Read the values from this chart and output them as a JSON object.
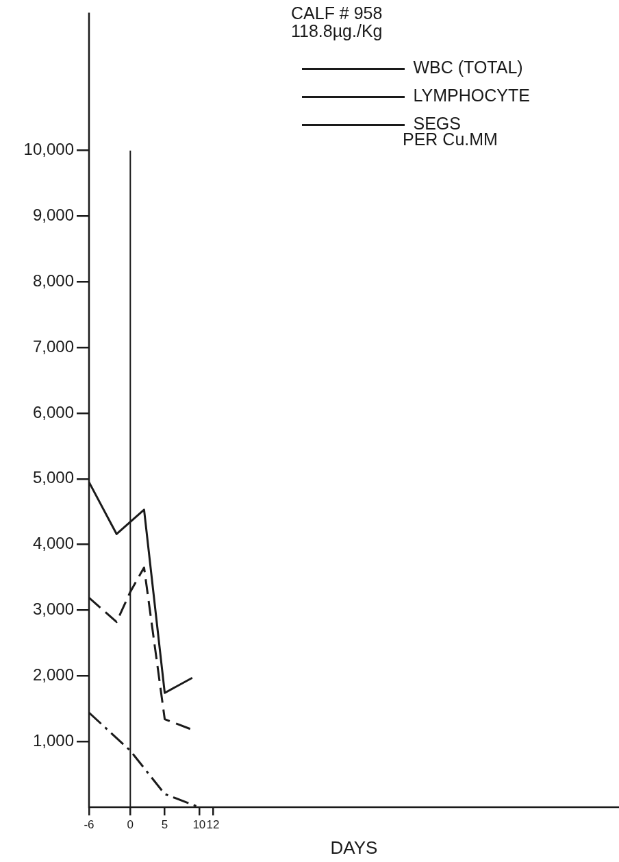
{
  "chart_data": {
    "type": "line",
    "title": "CALF # 958",
    "subtitle": "118.8µg./Kg",
    "xlabel": "DAYS",
    "ylabel": "PER Cu.MM",
    "xlim": [
      -6,
      71
    ],
    "xticks": [
      -6,
      0,
      5,
      10,
      12
    ],
    "ylim": [
      0,
      12100
    ],
    "yticks": [
      {
        "value": 1000,
        "label": "1,000"
      },
      {
        "value": 2000,
        "label": "2,000"
      },
      {
        "value": 3000,
        "label": "3,000"
      },
      {
        "value": 4000,
        "label": "4,000"
      },
      {
        "value": 5000,
        "label": "5,000"
      },
      {
        "value": 6000,
        "label": "6,000"
      },
      {
        "value": 7000,
        "label": "7,000"
      },
      {
        "value": 8000,
        "label": "8,000"
      },
      {
        "value": 9000,
        "label": "9,000"
      },
      {
        "value": 10000,
        "label": "10,000"
      }
    ],
    "series": [
      {
        "name": "WBC (TOTAL)",
        "color": "#1a1a1a",
        "line_style": "solid",
        "x": [
          -6,
          -2,
          2,
          5,
          9
        ],
        "values": [
          4950,
          4160,
          4530,
          1740,
          1970
        ]
      },
      {
        "name": "LYMPHOCYTE",
        "color": "#1a1a1a",
        "line_style": "dashed",
        "x": [
          -6,
          -2,
          0,
          2,
          5,
          9
        ],
        "values": [
          3190,
          2820,
          3280,
          3650,
          1340,
          1180
        ]
      },
      {
        "name": "SEGS",
        "color": "#1a1a1a",
        "line_style": "dashdot",
        "x": [
          -6,
          0,
          5,
          10
        ],
        "values": [
          1440,
          860,
          200,
          0
        ]
      }
    ],
    "ref_lines": [
      {
        "axis": "x",
        "value": 0,
        "color": "#1a1a1a"
      }
    ],
    "legend": "top right",
    "grid": false,
    "marker": "none"
  }
}
